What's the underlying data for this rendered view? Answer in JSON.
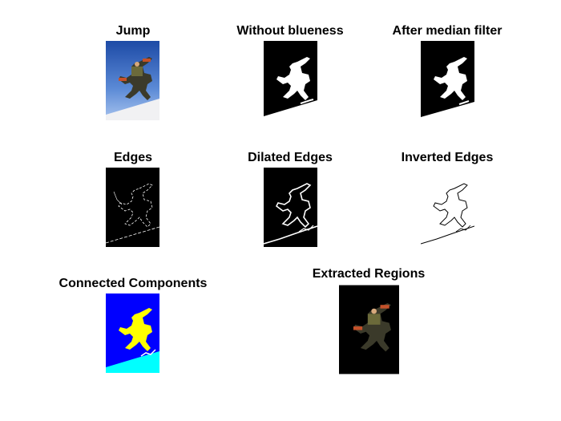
{
  "figure": {
    "panels": [
      {
        "title": "Jump"
      },
      {
        "title": "Without blueness"
      },
      {
        "title": "After median filter"
      },
      {
        "title": "Edges"
      },
      {
        "title": "Dilated Edges"
      },
      {
        "title": "Inverted Edges"
      },
      {
        "title": "Connected Components"
      },
      {
        "title": "Extracted Regions"
      }
    ]
  },
  "colors": {
    "sky_top": "#1f4ea8",
    "sky_bottom": "#8fb3e6",
    "snow": "#f2f2f2",
    "mask_bg": "#000000",
    "mask_fg": "#ffffff",
    "component_bg": "#0000ff",
    "component_person": "#ffff00",
    "component_snow": "#00ffff"
  }
}
